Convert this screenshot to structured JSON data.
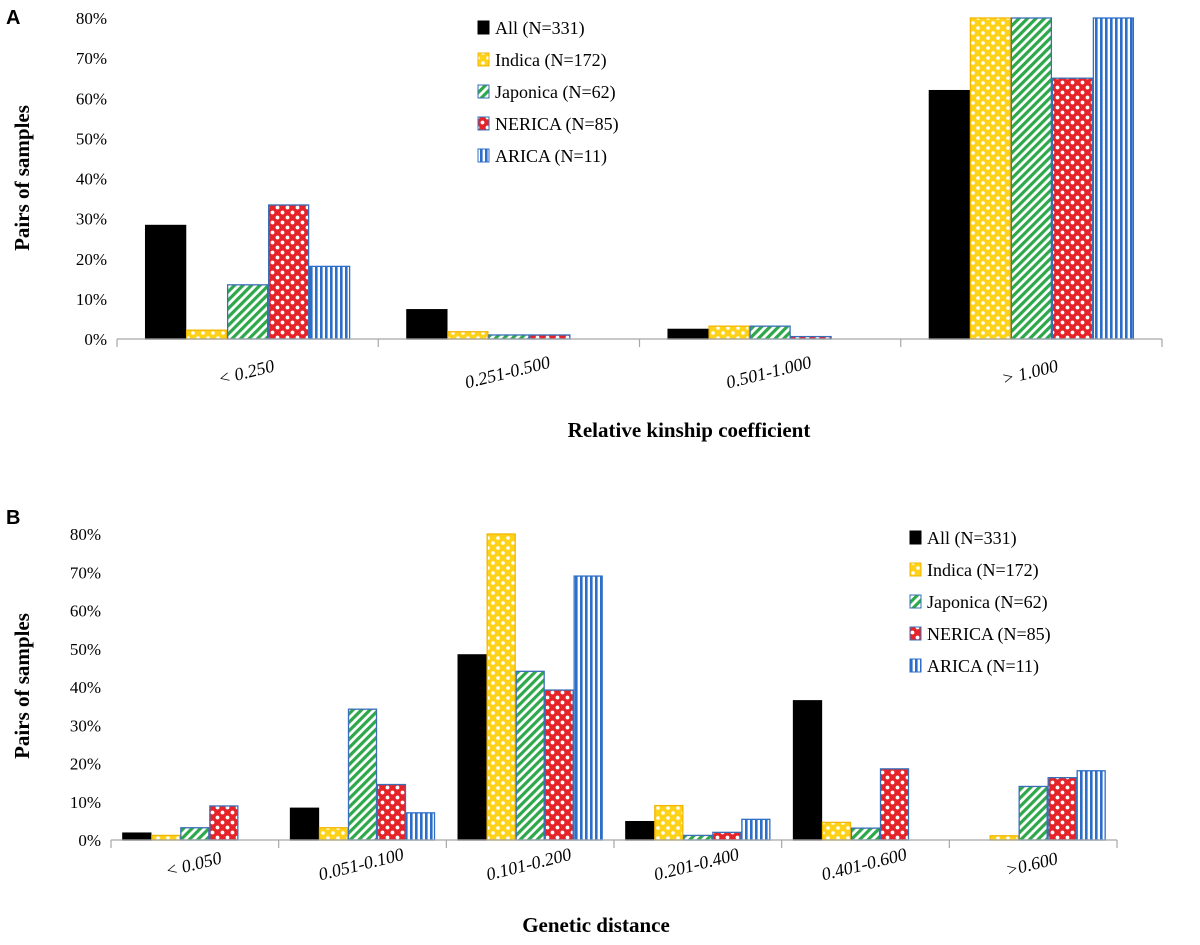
{
  "chart_data": [
    {
      "panel": "A",
      "type": "bar",
      "xlabel": "Relative kinship coefficient",
      "ylabel": "Pairs of samples",
      "ylim": [
        0,
        80
      ],
      "yticks": [
        "0%",
        "10%",
        "20%",
        "30%",
        "40%",
        "50%",
        "60%",
        "70%",
        "80%"
      ],
      "categories": [
        "< 0.250",
        "0.251-0.500",
        "0.501-1.000",
        "> 1.000"
      ],
      "legend_position": "top-center",
      "series": [
        {
          "name": "All (N=331)",
          "pattern": "solid",
          "values": [
            28.3,
            7.3,
            2.4,
            61.9
          ]
        },
        {
          "name": "Indica (N=172)",
          "pattern": "dots",
          "values": [
            2.2,
            1.8,
            3.2,
            80
          ]
        },
        {
          "name": "Japonica (N=62)",
          "pattern": "diag",
          "values": [
            13.5,
            1.0,
            3.2,
            80
          ]
        },
        {
          "name": "NERICA (N=85)",
          "pattern": "checker",
          "values": [
            33.4,
            1.0,
            0.6,
            65.0
          ]
        },
        {
          "name": "ARICA (N=11)",
          "pattern": "vlines",
          "values": [
            18.1,
            0,
            0,
            80
          ]
        }
      ]
    },
    {
      "panel": "B",
      "type": "bar",
      "xlabel": "Genetic distance",
      "ylabel": "Pairs of samples",
      "ylim": [
        0,
        80
      ],
      "yticks": [
        "0%",
        "10%",
        "20%",
        "30%",
        "40%",
        "50%",
        "60%",
        "70%",
        "80%"
      ],
      "categories": [
        "< 0.050",
        "0.051-0.100",
        "0.101-0.200",
        "0.201-0.400",
        "0.401-0.600",
        ">0.600"
      ],
      "legend_position": "top-right",
      "series": [
        {
          "name": "All (N=331)",
          "pattern": "solid",
          "values": [
            1.8,
            8.3,
            48.4,
            4.8,
            36.4,
            0
          ]
        },
        {
          "name": "Indica (N=172)",
          "pattern": "dots",
          "values": [
            1.2,
            3.2,
            80,
            9.0,
            4.6,
            1.1
          ]
        },
        {
          "name": "Japonica (N=62)",
          "pattern": "diag",
          "values": [
            3.2,
            34.2,
            44.1,
            1.2,
            3.1,
            14.0
          ]
        },
        {
          "name": "NERICA (N=85)",
          "pattern": "checker",
          "values": [
            8.9,
            14.5,
            39.2,
            2.0,
            18.6,
            16.3
          ]
        },
        {
          "name": "ARICA (N=11)",
          "pattern": "vlines",
          "values": [
            0,
            7.1,
            69.0,
            5.4,
            0,
            18.1
          ]
        }
      ]
    }
  ],
  "colors": {
    "solid_fill": "#000000",
    "dots_fill": "#ffd21a",
    "dots_edge": "#f2b600",
    "diag_fill": "#2ea84a",
    "diag_edge": "#3a6fb8",
    "checker_fill": "#e5242a",
    "checker_edge": "#3a6fb8",
    "vlines_fill": "#2d6fc8",
    "vlines_edge": "#2d6fc8",
    "axis": "#a6a6a6"
  }
}
